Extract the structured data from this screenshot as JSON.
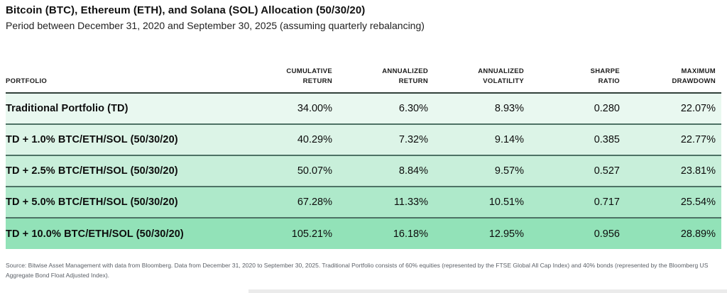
{
  "header": {
    "title": "Bitcoin (BTC), Ethereum (ETH), and Solana (SOL) Allocation (50/30/20)",
    "subtitle": "Period between December 31, 2020 and September 30, 2025 (assuming quarterly rebalancing)"
  },
  "chart_data": {
    "type": "table",
    "title": "Bitcoin (BTC), Ethereum (ETH), and Solana (SOL) Allocation (50/30/20)",
    "subtitle": "Period between December 31, 2020 and September 30, 2025 (assuming quarterly rebalancing)",
    "columns": [
      "PORTFOLIO",
      "CUMULATIVE\nRETURN",
      "ANNUALIZED\nRETURN",
      "ANNUALIZED\nVOLATILITY",
      "SHARPE\nRATIO",
      "MAXIMUM\nDRAWDOWN"
    ],
    "rows": [
      {
        "portfolio": "Traditional Portfolio (TD)",
        "cumulative_return": "34.00%",
        "annualized_return": "6.30%",
        "annualized_volatility": "8.93%",
        "sharpe_ratio": "0.280",
        "maximum_drawdown": "22.07%"
      },
      {
        "portfolio": "TD + 1.0% BTC/ETH/SOL (50/30/20)",
        "cumulative_return": "40.29%",
        "annualized_return": "7.32%",
        "annualized_volatility": "9.14%",
        "sharpe_ratio": "0.385",
        "maximum_drawdown": "22.77%"
      },
      {
        "portfolio": "TD + 2.5% BTC/ETH/SOL (50/30/20)",
        "cumulative_return": "50.07%",
        "annualized_return": "8.84%",
        "annualized_volatility": "9.57%",
        "sharpe_ratio": "0.527",
        "maximum_drawdown": "23.81%"
      },
      {
        "portfolio": "TD + 5.0% BTC/ETH/SOL (50/30/20)",
        "cumulative_return": "67.28%",
        "annualized_return": "11.33%",
        "annualized_volatility": "10.51%",
        "sharpe_ratio": "0.717",
        "maximum_drawdown": "25.54%"
      },
      {
        "portfolio": "TD + 10.0% BTC/ETH/SOL (50/30/20)",
        "cumulative_return": "105.21%",
        "annualized_return": "16.18%",
        "annualized_volatility": "12.95%",
        "sharpe_ratio": "0.956",
        "maximum_drawdown": "28.89%"
      }
    ]
  },
  "colors": {
    "row_backgrounds": [
      "#e9f8f0",
      "#dcf4e7",
      "#c8efda",
      "#aee9ca",
      "#92e2b8"
    ],
    "row_separator": "#4e7265",
    "header_underline": "#31413a"
  },
  "footnote": {
    "text": "Source: Bitwise Asset Management with data from Bloomberg. Data from December 31, 2020 to September 30, 2025. Traditional Portfolio consists of 60% equities (represented by the FTSE Global All Cap Index) and 40% bonds (represented by the Bloomberg US Aggregate Bond Float Adjusted Index)."
  }
}
